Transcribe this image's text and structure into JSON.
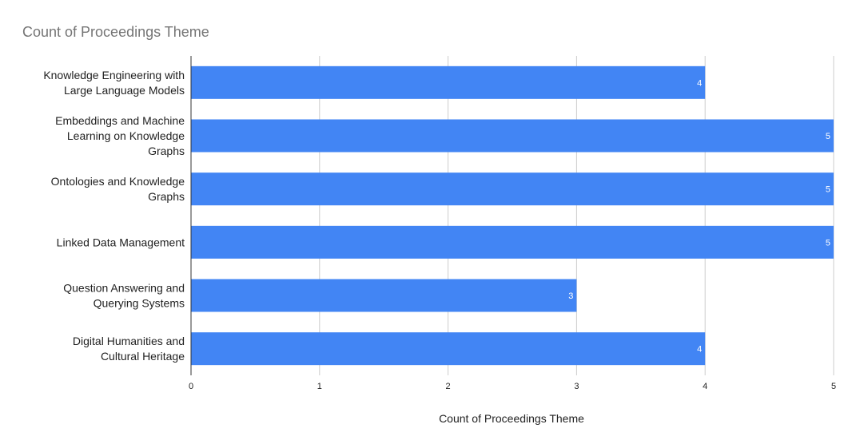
{
  "chart_data": {
    "type": "bar",
    "orientation": "horizontal",
    "title": "Count of Proceedings Theme",
    "xlabel": "Count of Proceedings Theme",
    "ylabel": "",
    "categories": [
      [
        "Knowledge Engineering with",
        "Large Language Models"
      ],
      [
        "Embeddings and Machine",
        "Learning on Knowledge",
        "Graphs"
      ],
      [
        "Ontologies and Knowledge",
        "Graphs"
      ],
      [
        "Linked Data Management"
      ],
      [
        "Question Answering and",
        "Querying Systems"
      ],
      [
        "Digital Humanities and",
        "Cultural Heritage"
      ]
    ],
    "values": [
      4,
      5,
      5,
      5,
      3,
      4
    ],
    "xlim": [
      0,
      5
    ],
    "xticks": [
      "0",
      "1",
      "2",
      "3",
      "4",
      "5"
    ],
    "grid": true,
    "data_labels": true,
    "legend": "none",
    "colors": {
      "bar": "#4285f4",
      "grid": "#cccccc",
      "axis": "#333333",
      "title": "#757575",
      "text": "#222222",
      "data_label": "#ffffff"
    }
  }
}
